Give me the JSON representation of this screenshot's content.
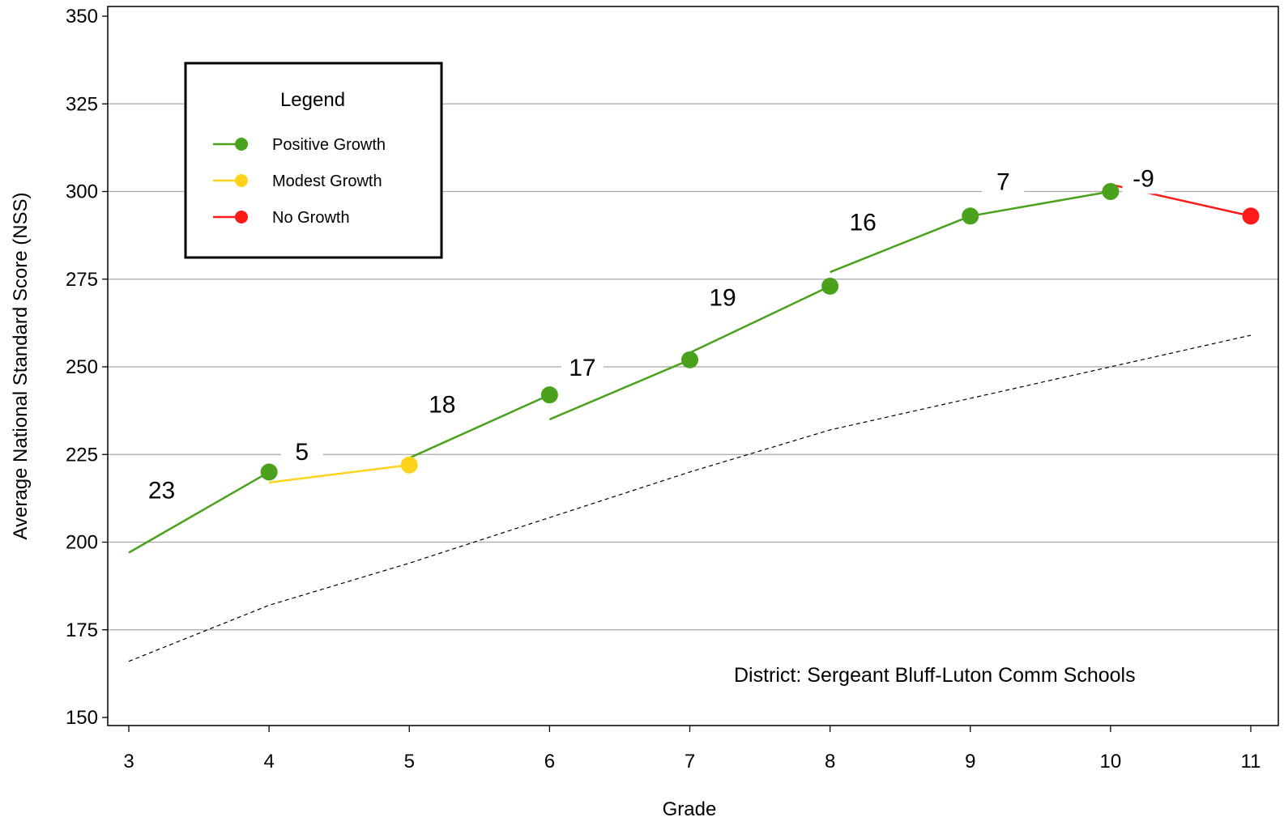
{
  "chart_data": {
    "type": "line",
    "xlabel": "Grade",
    "ylabel": "Average National Standard Score (NSS)",
    "xlim": [
      3,
      11
    ],
    "ylim": [
      150,
      350
    ],
    "x_ticks": [
      "3",
      "4",
      "5",
      "6",
      "7",
      "8",
      "9",
      "10",
      "11"
    ],
    "y_ticks": [
      "150",
      "175",
      "200",
      "225",
      "250",
      "275",
      "300",
      "325",
      "350"
    ],
    "grid": true,
    "annotation": "District: Sergeant Bluff-Luton Comm Schools",
    "legend": {
      "title": "Legend",
      "placement": "top-left",
      "entries": [
        {
          "label": "Positive Growth",
          "color": "#4aa11c"
        },
        {
          "label": "Modest Growth",
          "color": "#ffd21c"
        },
        {
          "label": "No Growth",
          "color": "#ff1a1a"
        }
      ]
    },
    "growth_segments": [
      {
        "label": "23",
        "x": [
          3,
          4
        ],
        "y": [
          197,
          220
        ],
        "status": "positive",
        "color": "#4aa11c"
      },
      {
        "label": "5",
        "x": [
          4,
          5
        ],
        "y": [
          217,
          222
        ],
        "status": "modest",
        "color": "#ffd21c"
      },
      {
        "label": "18",
        "x": [
          5,
          6
        ],
        "y": [
          224,
          242
        ],
        "status": "positive",
        "color": "#4aa11c"
      },
      {
        "label": "17",
        "x": [
          6,
          7
        ],
        "y": [
          235,
          252
        ],
        "status": "positive",
        "color": "#4aa11c"
      },
      {
        "label": "19",
        "x": [
          7,
          8
        ],
        "y": [
          254,
          273
        ],
        "status": "positive",
        "color": "#4aa11c"
      },
      {
        "label": "16",
        "x": [
          8,
          9
        ],
        "y": [
          277,
          293
        ],
        "status": "positive",
        "color": "#4aa11c"
      },
      {
        "label": "7",
        "x": [
          9,
          10
        ],
        "y": [
          293,
          300
        ],
        "status": "positive",
        "color": "#4aa11c"
      },
      {
        "label": "-9",
        "x": [
          10,
          11
        ],
        "y": [
          302,
          293
        ],
        "status": "none",
        "color": "#ff1a1a"
      }
    ],
    "points": [
      {
        "x": 4,
        "y": 220,
        "color": "#4aa11c"
      },
      {
        "x": 5,
        "y": 222,
        "color": "#ffd21c"
      },
      {
        "x": 6,
        "y": 242,
        "color": "#4aa11c"
      },
      {
        "x": 7,
        "y": 252,
        "color": "#4aa11c"
      },
      {
        "x": 8,
        "y": 273,
        "color": "#4aa11c"
      },
      {
        "x": 9,
        "y": 293,
        "color": "#4aa11c"
      },
      {
        "x": 10,
        "y": 300,
        "color": "#4aa11c"
      },
      {
        "x": 11,
        "y": 293,
        "color": "#ff1a1a"
      }
    ],
    "reference_line": {
      "style": "dashed",
      "x": [
        3,
        4,
        5,
        6,
        7,
        8,
        9,
        10,
        11
      ],
      "y": [
        166,
        182,
        194,
        207,
        220,
        232,
        241,
        250,
        259
      ]
    }
  }
}
